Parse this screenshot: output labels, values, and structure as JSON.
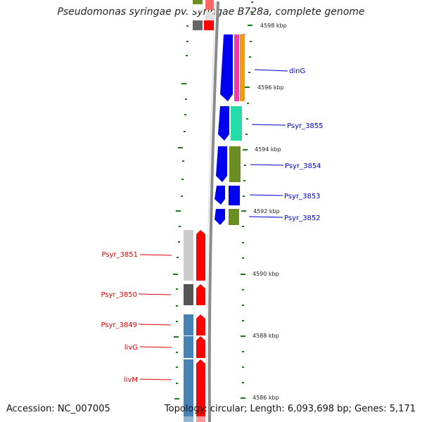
{
  "title": "Pseudomonas syringae pv. syringae B728a, complete genome",
  "footer": {
    "accession": "Accession: NC_007005",
    "topology": "Topology: circular; Length: 6,093,698 bp; Genes: 5,171"
  },
  "kbp_labels": [
    "4598 kbp",
    "4596 kbp",
    "4594 kbp",
    "4592 kbp",
    "4590 kbp",
    "4588 kbp",
    "4586 kbp"
  ],
  "gene_labels": {
    "dinG": "dinG",
    "psyr_3855": "Psyr_3855",
    "psyr_3854": "Psyr_3854",
    "psyr_3853": "Psyr_3853",
    "psyr_3852": "Psyr_3852",
    "psyr_3851": "Psyr_3851",
    "psyr_3850": "Psyr_3850",
    "psyr_3849": "Psyr_3849",
    "livG": "livG",
    "livM": "livM"
  },
  "colors": {
    "forward_label": "#0000cc",
    "reverse_label": "#dd0000",
    "backbone": "#808080",
    "tick": "#1a7a1a",
    "forward_gene": "#0000ee",
    "reverse_gene": "#ff0000"
  }
}
